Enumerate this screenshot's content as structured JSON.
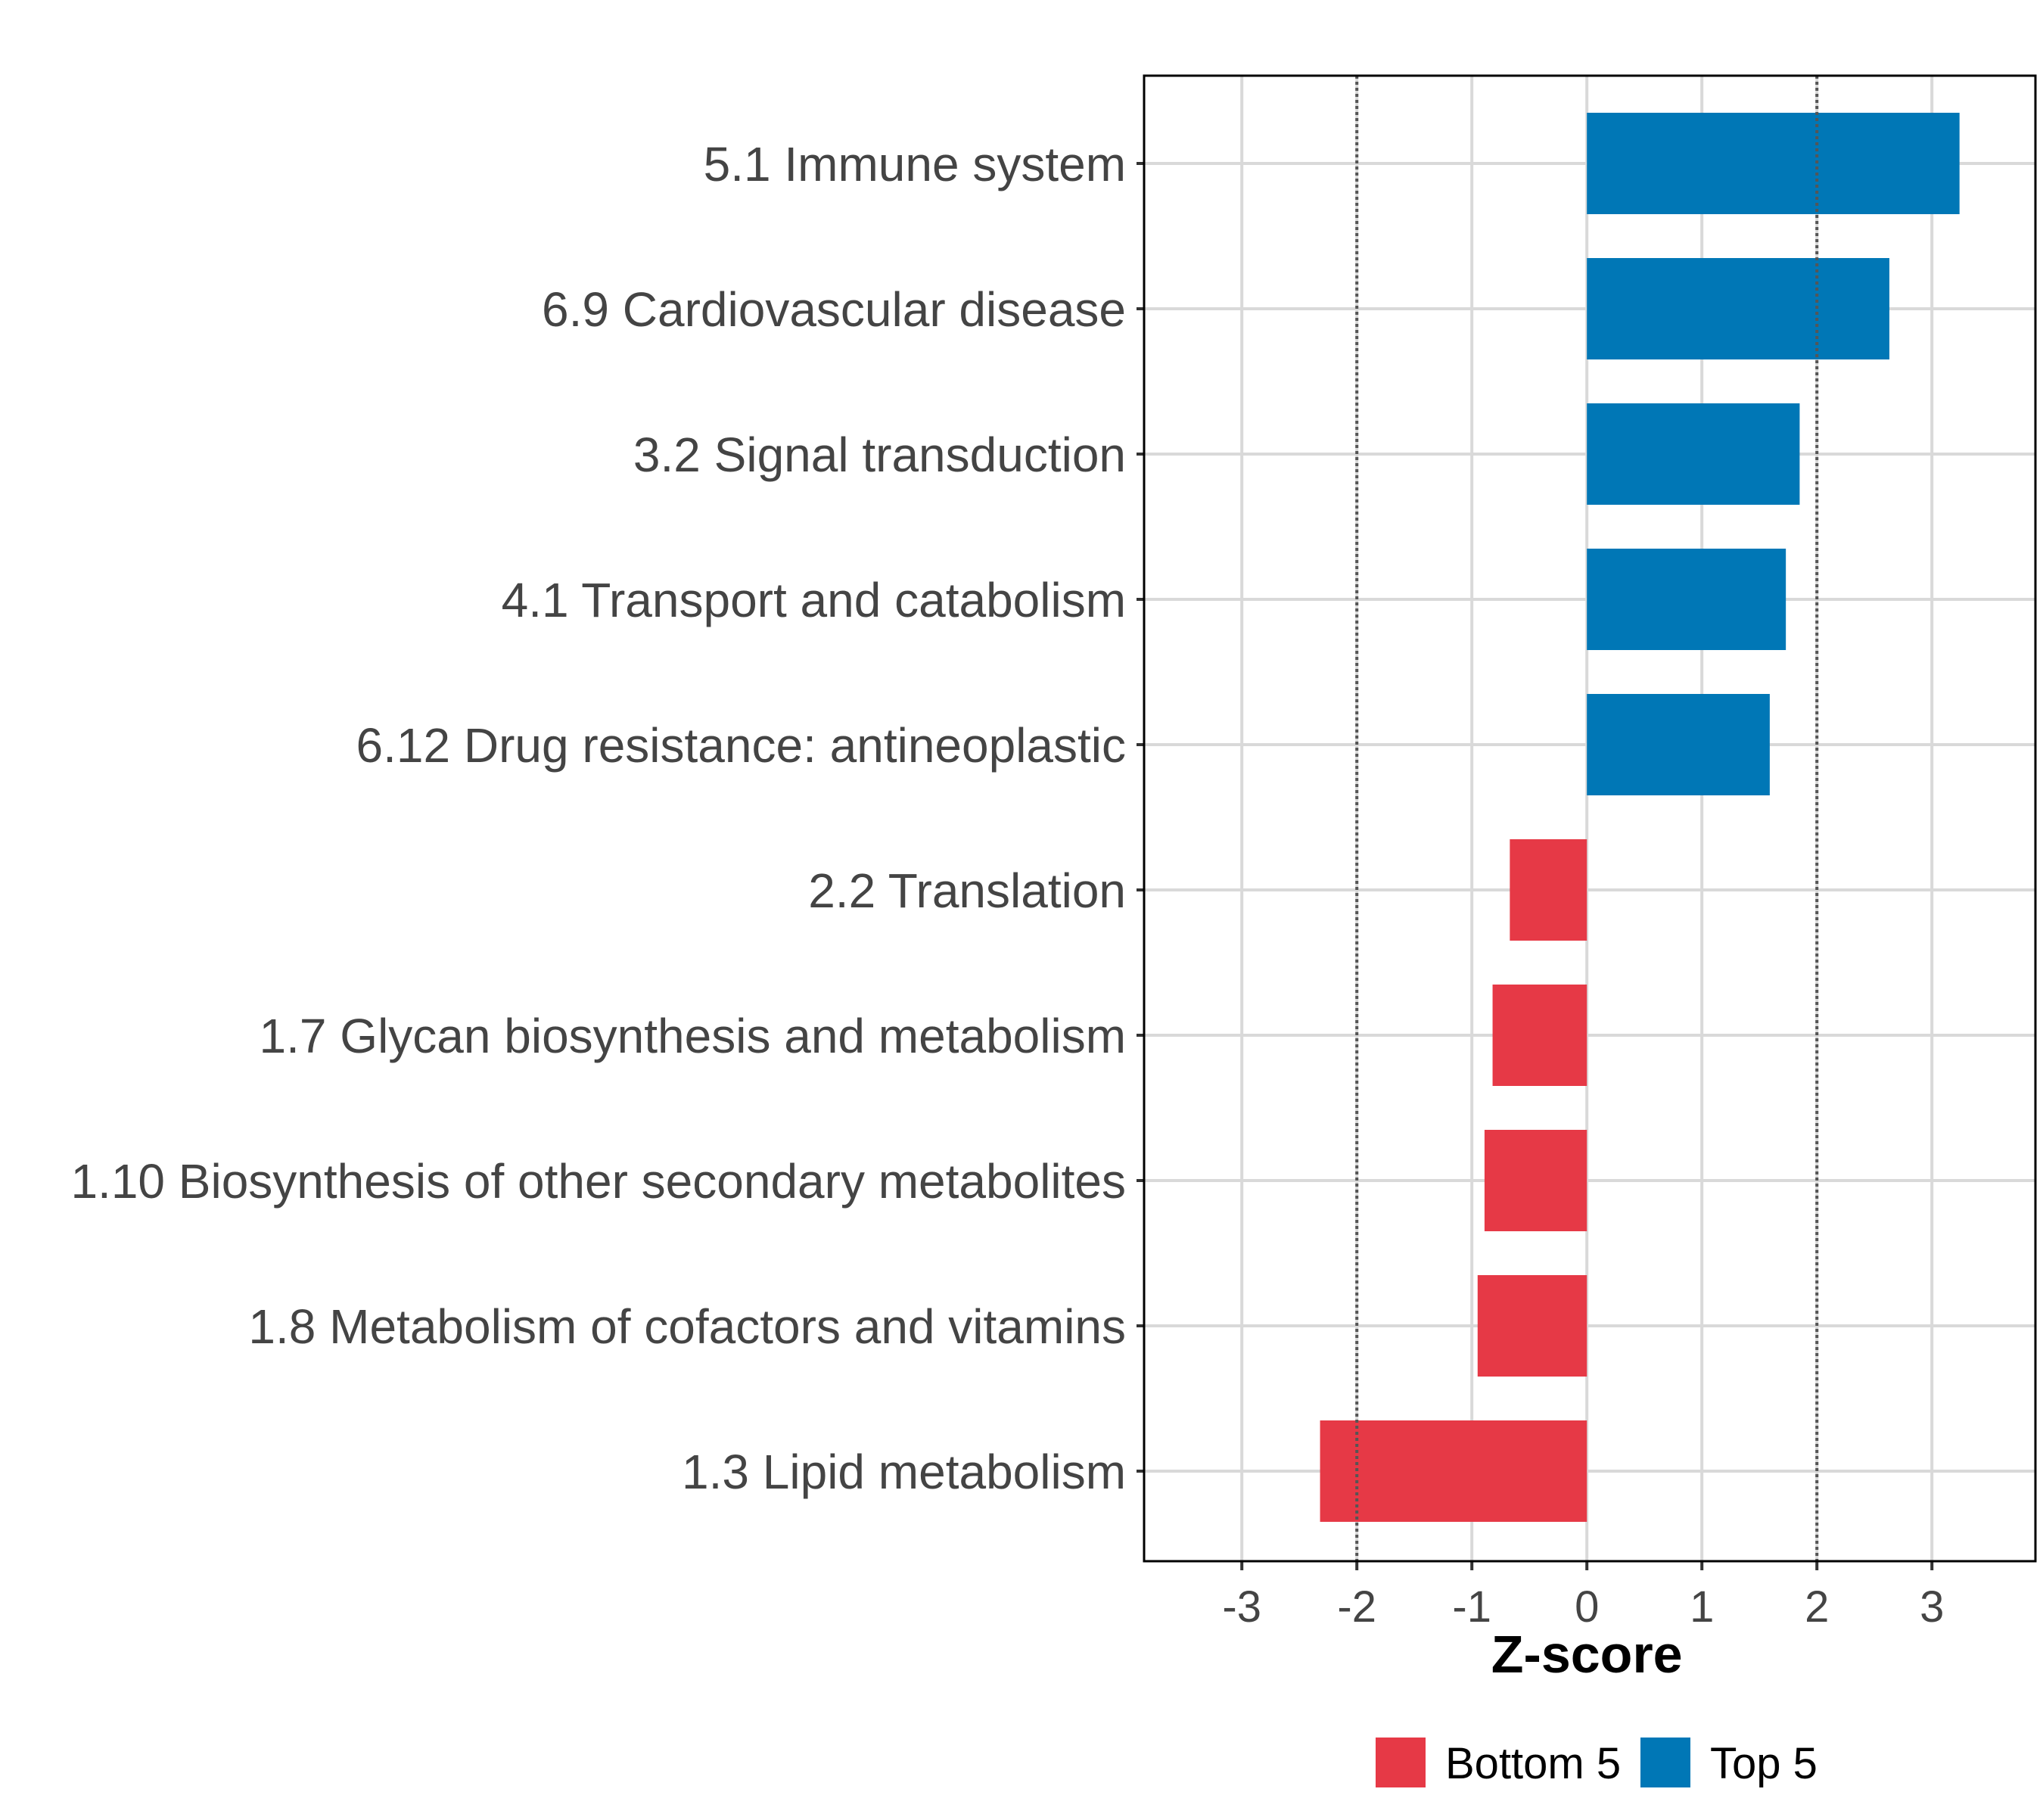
{
  "chart_data": {
    "type": "bar",
    "orientation": "horizontal",
    "title": "",
    "xlabel": "Z-score",
    "ylabel": "",
    "xlim": [
      -3.85,
      3.9
    ],
    "xticks": [
      -3,
      -2,
      -1,
      0,
      1,
      2,
      3
    ],
    "xtick_labels": [
      "-3",
      "-2",
      "-1",
      "0",
      "1",
      "2",
      "3"
    ],
    "reference_lines": [
      -2,
      2
    ],
    "grid": true,
    "categories": [
      "5.1 Immune system",
      "6.9 Cardiovascular disease",
      "3.2 Signal transduction",
      "4.1 Transport and catabolism",
      "6.12 Drug resistance: antineoplastic",
      "2.2 Translation",
      "1.7 Glycan biosynthesis and metabolism",
      "1.10 Biosynthesis of other secondary metabolites",
      "1.8 Metabolism of cofactors and vitamins",
      "1.3 Lipid metabolism"
    ],
    "values": [
      3.24,
      2.63,
      1.85,
      1.73,
      1.59,
      -0.67,
      -0.82,
      -0.89,
      -0.95,
      -2.32
    ],
    "groups": [
      "Top 5",
      "Top 5",
      "Top 5",
      "Top 5",
      "Top 5",
      "Bottom 5",
      "Bottom 5",
      "Bottom 5",
      "Bottom 5",
      "Bottom 5"
    ],
    "legend": {
      "position": "bottom",
      "entries": [
        {
          "label": "Bottom 5",
          "color": "#E63946"
        },
        {
          "label": "Top 5",
          "color": "#0077B6"
        }
      ]
    },
    "colors": {
      "Top 5": "#0077B6",
      "Bottom 5": "#E63946"
    }
  }
}
